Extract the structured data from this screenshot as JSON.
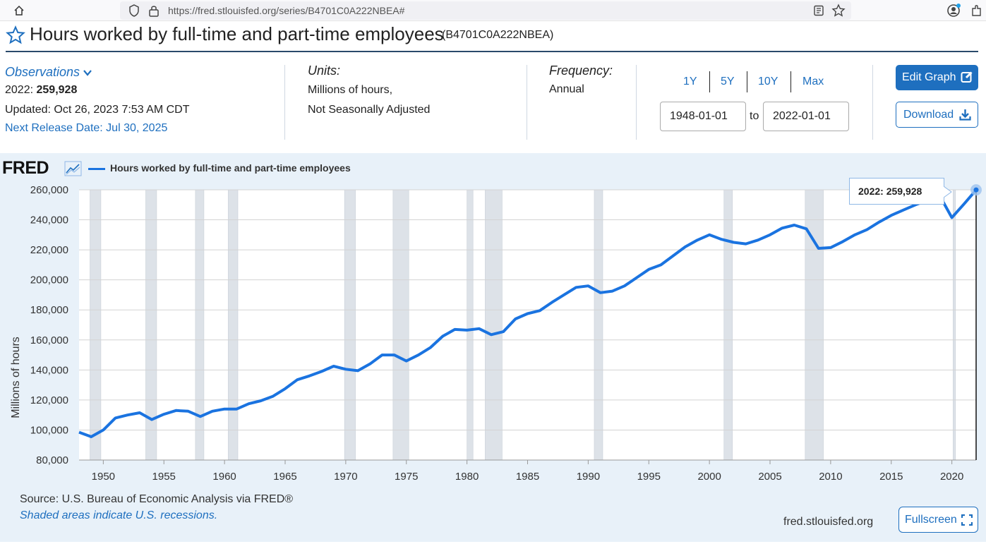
{
  "browser": {
    "url": "https://fred.stlouisfed.org/series/B4701C0A222NBEA#"
  },
  "header": {
    "title": "Hours worked by full-time and part-time employees",
    "series_id": "(B4701C0A222NBEA)"
  },
  "meta": {
    "observations_label": "Observations",
    "obs_year": "2022:",
    "obs_value": "259,928",
    "updated": "Updated: Oct 26, 2023 7:53 AM CDT",
    "next_release": "Next Release Date: Jul 30, 2025",
    "units_label": "Units:",
    "units_line1": "Millions of hours,",
    "units_line2": "Not Seasonally Adjusted",
    "frequency_label": "Frequency:",
    "frequency_value": "Annual"
  },
  "controls": {
    "ranges": [
      "1Y",
      "5Y",
      "10Y",
      "Max"
    ],
    "start_date": "1948-01-01",
    "end_date": "2022-01-01",
    "to_label": "to",
    "edit_graph": "Edit Graph",
    "download": "Download"
  },
  "chart_panel": {
    "logo": "FRED",
    "legend": "Hours worked by full-time and part-time employees",
    "tooltip": "2022:  259,928",
    "source": "Source: U.S. Bureau of Economic Analysis via FRED®",
    "shaded_note": "Shaded areas indicate U.S. recessions.",
    "site": "fred.stlouisfed.org",
    "fullscreen": "Fullscreen"
  },
  "colors": {
    "accent": "#1e6fbf",
    "line": "#1a73e0",
    "recession": "#dde2e8",
    "panel_bg": "#e8f1f9"
  },
  "chart_data": {
    "type": "line",
    "title": "Hours worked by full-time and part-time employees",
    "xlabel": "",
    "ylabel": "Millions of hours",
    "xlim": [
      1948,
      2022
    ],
    "ylim": [
      80000,
      260000
    ],
    "x_ticks": [
      1950,
      1955,
      1960,
      1965,
      1970,
      1975,
      1980,
      1985,
      1990,
      1995,
      2000,
      2005,
      2010,
      2015,
      2020
    ],
    "y_ticks": [
      80000,
      100000,
      120000,
      140000,
      160000,
      180000,
      200000,
      220000,
      240000,
      260000
    ],
    "y_tick_labels": [
      "80,000",
      "100,000",
      "120,000",
      "140,000",
      "160,000",
      "180,000",
      "200,000",
      "220,000",
      "240,000",
      "260,000"
    ],
    "recessions": [
      [
        1948.9,
        1949.8
      ],
      [
        1953.5,
        1954.4
      ],
      [
        1957.6,
        1958.3
      ],
      [
        1960.3,
        1961.1
      ],
      [
        1969.9,
        1970.8
      ],
      [
        1973.9,
        1975.2
      ],
      [
        1980.0,
        1980.5
      ],
      [
        1981.5,
        1982.9
      ],
      [
        1990.5,
        1991.2
      ],
      [
        2001.2,
        2001.9
      ],
      [
        2007.9,
        2009.4
      ],
      [
        2020.1,
        2020.3
      ]
    ],
    "series": [
      {
        "name": "Hours worked by full-time and part-time employees",
        "x": [
          1948,
          1949,
          1950,
          1951,
          1952,
          1953,
          1954,
          1955,
          1956,
          1957,
          1958,
          1959,
          1960,
          1961,
          1962,
          1963,
          1964,
          1965,
          1966,
          1967,
          1968,
          1969,
          1970,
          1971,
          1972,
          1973,
          1974,
          1975,
          1976,
          1977,
          1978,
          1979,
          1980,
          1981,
          1982,
          1983,
          1984,
          1985,
          1986,
          1987,
          1988,
          1989,
          1990,
          1991,
          1992,
          1993,
          1994,
          1995,
          1996,
          1997,
          1998,
          1999,
          2000,
          2001,
          2002,
          2003,
          2004,
          2005,
          2006,
          2007,
          2008,
          2009,
          2010,
          2011,
          2012,
          2013,
          2014,
          2015,
          2016,
          2017,
          2018,
          2019,
          2020,
          2021,
          2022
        ],
        "values": [
          98500,
          95500,
          100000,
          108000,
          110000,
          111500,
          107000,
          110500,
          113000,
          112500,
          109000,
          112500,
          114000,
          114000,
          117500,
          119500,
          122500,
          127500,
          133500,
          136000,
          139000,
          142500,
          140500,
          139500,
          144000,
          150000,
          150000,
          146000,
          150000,
          155000,
          162500,
          167000,
          166500,
          167500,
          163500,
          165500,
          174000,
          177500,
          179500,
          185000,
          190000,
          195000,
          196000,
          191500,
          192500,
          196000,
          201500,
          207000,
          210000,
          216000,
          222000,
          226500,
          230000,
          227000,
          225000,
          224000,
          226500,
          230000,
          234500,
          236500,
          234000,
          221000,
          221500,
          225500,
          230000,
          233500,
          238500,
          243000,
          246500,
          250000,
          253000,
          256000,
          241500,
          250500,
          259928
        ]
      }
    ]
  }
}
